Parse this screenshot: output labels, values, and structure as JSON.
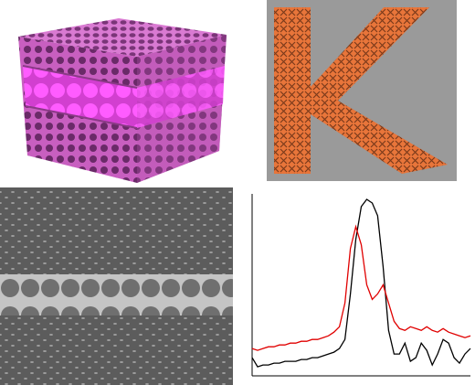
{
  "chart_data": {
    "type": "line",
    "x": [
      0,
      2.5,
      5,
      7.5,
      10,
      12.5,
      15,
      17.5,
      20,
      22.5,
      25,
      27.5,
      30,
      32.5,
      35,
      37.5,
      40,
      42.5,
      45,
      47.5,
      50,
      52.5,
      55,
      57.5,
      60,
      62.5,
      65,
      67.5,
      70,
      72.5,
      75,
      77.5,
      80,
      82.5,
      85,
      87.5,
      90,
      92.5,
      95,
      97.5,
      100
    ],
    "series": [
      {
        "color": "#000000",
        "values": [
          0.1,
          0.05,
          0.06,
          0.06,
          0.07,
          0.07,
          0.08,
          0.08,
          0.08,
          0.09,
          0.09,
          0.1,
          0.1,
          0.11,
          0.12,
          0.13,
          0.15,
          0.2,
          0.45,
          0.75,
          0.93,
          0.97,
          0.95,
          0.88,
          0.6,
          0.25,
          0.12,
          0.12,
          0.18,
          0.08,
          0.1,
          0.18,
          0.14,
          0.06,
          0.12,
          0.2,
          0.18,
          0.1,
          0.07,
          0.12,
          0.15
        ]
      },
      {
        "color": "#e00000",
        "values": [
          0.15,
          0.14,
          0.15,
          0.16,
          0.16,
          0.17,
          0.17,
          0.18,
          0.18,
          0.19,
          0.19,
          0.2,
          0.2,
          0.21,
          0.22,
          0.24,
          0.27,
          0.4,
          0.7,
          0.82,
          0.72,
          0.5,
          0.42,
          0.45,
          0.5,
          0.4,
          0.3,
          0.26,
          0.25,
          0.27,
          0.26,
          0.25,
          0.27,
          0.25,
          0.24,
          0.26,
          0.24,
          0.23,
          0.22,
          0.21,
          0.22
        ]
      }
    ],
    "xlim": [
      0,
      100
    ],
    "ylim": [
      0,
      1
    ]
  }
}
